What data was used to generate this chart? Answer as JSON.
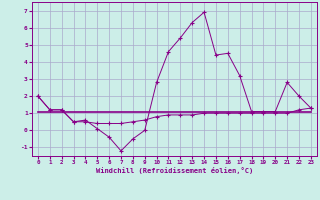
{
  "x": [
    0,
    1,
    2,
    3,
    4,
    5,
    6,
    7,
    8,
    9,
    10,
    11,
    12,
    13,
    14,
    15,
    16,
    17,
    18,
    19,
    20,
    21,
    22,
    23
  ],
  "temp": [
    2.0,
    1.2,
    1.2,
    0.5,
    0.6,
    0.1,
    -0.4,
    -1.2,
    -0.5,
    0.0,
    2.8,
    4.6,
    5.4,
    6.3,
    6.9,
    4.4,
    4.5,
    3.2,
    1.1,
    1.1,
    1.1,
    2.8,
    2.0,
    1.3
  ],
  "windchill": [
    2.0,
    1.2,
    1.2,
    0.5,
    0.5,
    0.4,
    0.4,
    0.4,
    0.5,
    0.6,
    0.8,
    0.9,
    0.9,
    0.9,
    1.0,
    1.0,
    1.0,
    1.0,
    1.0,
    1.0,
    1.0,
    1.0,
    1.2,
    1.3
  ],
  "flat_line": [
    1.1,
    1.1,
    1.1,
    1.1,
    1.1,
    1.1,
    1.1,
    1.1,
    1.1,
    1.1,
    1.1,
    1.1,
    1.1,
    1.1,
    1.1,
    1.1,
    1.1,
    1.1,
    1.1,
    1.1,
    1.1,
    1.1,
    1.1,
    1.1
  ],
  "line_color": "#880088",
  "bg_color": "#cceee8",
  "grid_color": "#aaaacc",
  "xlabel": "Windchill (Refroidissement éolien,°C)",
  "ylim": [
    -1.5,
    7.5
  ],
  "xlim": [
    -0.5,
    23.5
  ],
  "yticks": [
    -1,
    0,
    1,
    2,
    3,
    4,
    5,
    6,
    7
  ],
  "xticks": [
    0,
    1,
    2,
    3,
    4,
    5,
    6,
    7,
    8,
    9,
    10,
    11,
    12,
    13,
    14,
    15,
    16,
    17,
    18,
    19,
    20,
    21,
    22,
    23
  ]
}
